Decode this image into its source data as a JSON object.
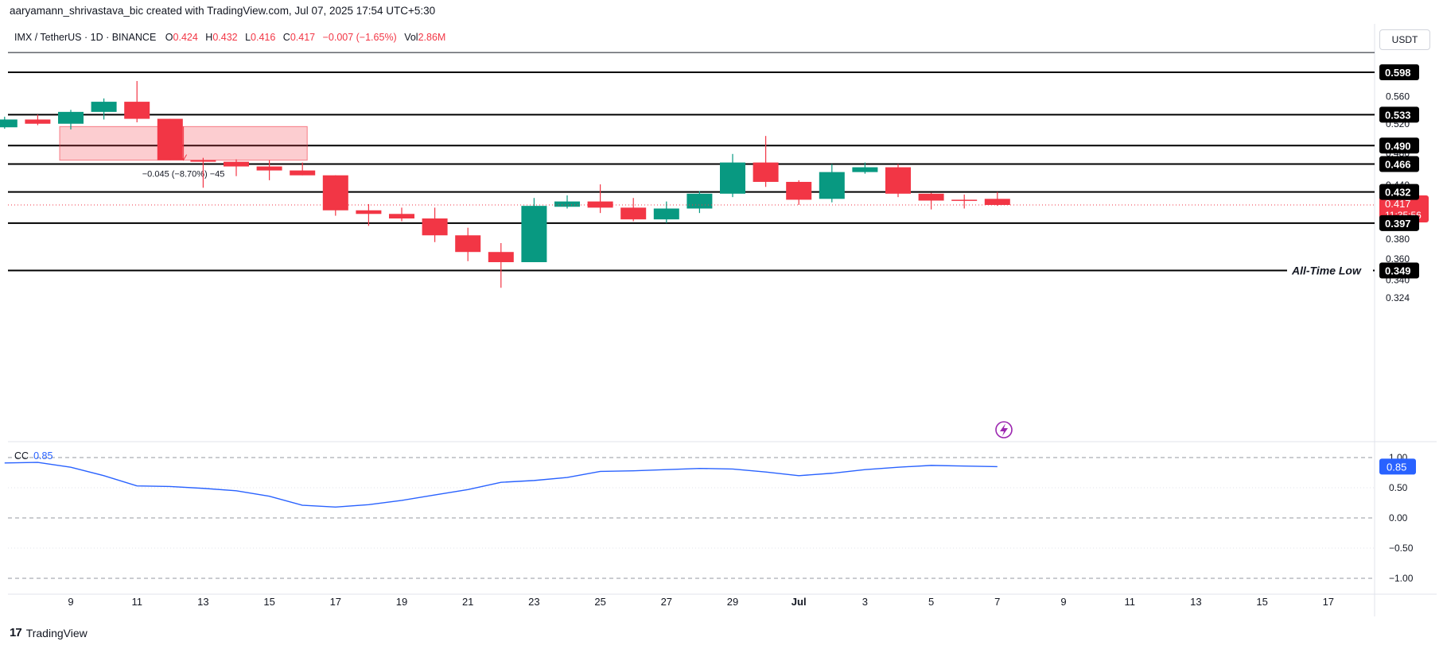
{
  "header": {
    "attribution": "aaryamann_shrivastava_bic created with TradingView.com, Jul 07, 2025 17:54 UTC+5:30"
  },
  "legend": {
    "symbol": "IMX / TetherUS · 1D · BINANCE",
    "open_label": "O",
    "open": "0.424",
    "high_label": "H",
    "high": "0.432",
    "low_label": "L",
    "low": "0.416",
    "close_label": "C",
    "close": "0.417",
    "change": "−0.007 (−1.65%)",
    "vol_label": "Vol",
    "vol": "2.86M"
  },
  "currency_button": "USDT",
  "footer": {
    "brand": "TradingView"
  },
  "colors": {
    "up": "#089981",
    "down": "#f23645",
    "cc_line": "#2962ff",
    "zone_fill": "#f23645"
  },
  "chart_data": [
    {
      "type": "candlestick",
      "title": "IMX / TetherUS · 1D · BINANCE",
      "y_scale": "log",
      "ylim": [
        0.318,
        0.64
      ],
      "y_ticks": [
        0.324,
        0.34,
        0.36,
        0.38,
        0.44,
        0.48,
        0.52,
        0.56
      ],
      "x_ticks": [
        {
          "date": "2025-06-09",
          "label": "9"
        },
        {
          "date": "2025-06-11",
          "label": "11"
        },
        {
          "date": "2025-06-13",
          "label": "13"
        },
        {
          "date": "2025-06-15",
          "label": "15"
        },
        {
          "date": "2025-06-17",
          "label": "17"
        },
        {
          "date": "2025-06-19",
          "label": "19"
        },
        {
          "date": "2025-06-21",
          "label": "21"
        },
        {
          "date": "2025-06-23",
          "label": "23"
        },
        {
          "date": "2025-06-25",
          "label": "25"
        },
        {
          "date": "2025-06-27",
          "label": "27"
        },
        {
          "date": "2025-06-29",
          "label": "29"
        },
        {
          "date": "2025-07-01",
          "label": "Jul"
        },
        {
          "date": "2025-07-03",
          "label": "3"
        },
        {
          "date": "2025-07-05",
          "label": "5"
        },
        {
          "date": "2025-07-07",
          "label": "7"
        },
        {
          "date": "2025-07-09",
          "label": "9"
        },
        {
          "date": "2025-07-11",
          "label": "11"
        },
        {
          "date": "2025-07-13",
          "label": "13"
        },
        {
          "date": "2025-07-15",
          "label": "15"
        },
        {
          "date": "2025-07-17",
          "label": "17"
        }
      ],
      "candles": [
        {
          "date": "2025-06-07",
          "o": 0.515,
          "h": 0.53,
          "l": 0.513,
          "c": 0.526
        },
        {
          "date": "2025-06-08",
          "o": 0.526,
          "h": 0.533,
          "l": 0.518,
          "c": 0.52
        },
        {
          "date": "2025-06-09",
          "o": 0.52,
          "h": 0.54,
          "l": 0.512,
          "c": 0.537
        },
        {
          "date": "2025-06-10",
          "o": 0.537,
          "h": 0.557,
          "l": 0.526,
          "c": 0.552
        },
        {
          "date": "2025-06-11",
          "o": 0.552,
          "h": 0.584,
          "l": 0.522,
          "c": 0.527
        },
        {
          "date": "2025-06-12",
          "o": 0.527,
          "h": 0.527,
          "l": 0.471,
          "c": 0.471
        },
        {
          "date": "2025-06-13",
          "o": 0.471,
          "h": 0.474,
          "l": 0.437,
          "c": 0.469
        },
        {
          "date": "2025-06-14",
          "o": 0.469,
          "h": 0.472,
          "l": 0.451,
          "c": 0.463
        },
        {
          "date": "2025-06-15",
          "o": 0.463,
          "h": 0.471,
          "l": 0.446,
          "c": 0.458
        },
        {
          "date": "2025-06-16",
          "o": 0.458,
          "h": 0.468,
          "l": 0.452,
          "c": 0.452
        },
        {
          "date": "2025-06-17",
          "o": 0.452,
          "h": 0.452,
          "l": 0.405,
          "c": 0.411
        },
        {
          "date": "2025-06-18",
          "o": 0.411,
          "h": 0.418,
          "l": 0.394,
          "c": 0.407
        },
        {
          "date": "2025-06-19",
          "o": 0.407,
          "h": 0.414,
          "l": 0.399,
          "c": 0.402
        },
        {
          "date": "2025-06-20",
          "o": 0.402,
          "h": 0.414,
          "l": 0.377,
          "c": 0.384
        },
        {
          "date": "2025-06-21",
          "o": 0.384,
          "h": 0.392,
          "l": 0.358,
          "c": 0.367
        },
        {
          "date": "2025-06-22",
          "o": 0.367,
          "h": 0.376,
          "l": 0.333,
          "c": 0.357
        },
        {
          "date": "2025-06-23",
          "o": 0.357,
          "h": 0.425,
          "l": 0.357,
          "c": 0.416
        },
        {
          "date": "2025-06-24",
          "o": 0.415,
          "h": 0.428,
          "l": 0.413,
          "c": 0.421
        },
        {
          "date": "2025-06-25",
          "o": 0.421,
          "h": 0.441,
          "l": 0.408,
          "c": 0.414
        },
        {
          "date": "2025-06-26",
          "o": 0.414,
          "h": 0.425,
          "l": 0.399,
          "c": 0.401
        },
        {
          "date": "2025-06-27",
          "o": 0.401,
          "h": 0.421,
          "l": 0.397,
          "c": 0.413
        },
        {
          "date": "2025-06-28",
          "o": 0.413,
          "h": 0.433,
          "l": 0.408,
          "c": 0.43
        },
        {
          "date": "2025-06-29",
          "o": 0.43,
          "h": 0.479,
          "l": 0.426,
          "c": 0.468
        },
        {
          "date": "2025-06-30",
          "o": 0.468,
          "h": 0.503,
          "l": 0.438,
          "c": 0.444
        },
        {
          "date": "2025-07-01",
          "o": 0.444,
          "h": 0.446,
          "l": 0.417,
          "c": 0.423
        },
        {
          "date": "2025-07-02",
          "o": 0.424,
          "h": 0.466,
          "l": 0.42,
          "c": 0.456
        },
        {
          "date": "2025-07-03",
          "o": 0.456,
          "h": 0.468,
          "l": 0.454,
          "c": 0.462
        },
        {
          "date": "2025-07-04",
          "o": 0.462,
          "h": 0.466,
          "l": 0.426,
          "c": 0.43
        },
        {
          "date": "2025-07-05",
          "o": 0.43,
          "h": 0.431,
          "l": 0.412,
          "c": 0.422
        },
        {
          "date": "2025-07-06",
          "o": 0.423,
          "h": 0.429,
          "l": 0.413,
          "c": 0.422
        },
        {
          "date": "2025-07-07",
          "o": 0.424,
          "h": 0.432,
          "l": 0.416,
          "c": 0.417
        }
      ],
      "levels": [
        {
          "value": 0.598,
          "label": "0.598"
        },
        {
          "value": 0.533,
          "label": "0.533"
        },
        {
          "value": 0.49,
          "label": "0.490"
        },
        {
          "value": 0.466,
          "label": "0.466"
        },
        {
          "value": 0.432,
          "label": "0.432"
        },
        {
          "value": 0.397,
          "label": "0.397"
        },
        {
          "value": 0.349,
          "label": "0.349",
          "annotation": "All-Time Low"
        }
      ],
      "top_line_value": 0.631,
      "last_price": {
        "value": 0.417,
        "label": "0.417",
        "countdown": "11:35:56"
      },
      "measure": {
        "from_date": "2025-06-09",
        "to_date": "2025-06-16",
        "top": 0.516,
        "bottom": 0.471,
        "label": "−0.045 (−8.70%) −45"
      }
    },
    {
      "type": "line",
      "indicator": "CC",
      "value_label": "0.85",
      "ylim": [
        -1.2,
        1.1
      ],
      "y_ticks": [
        1.0,
        0.5,
        0.0,
        -0.5,
        -1.0
      ],
      "y_tick_labels": [
        "1.00",
        "0.50",
        "0.00",
        "−0.50",
        "−1.00"
      ],
      "dashed_levels": [
        1.0,
        0.0,
        -1.0
      ],
      "dotted_levels": [
        0.5,
        -0.5
      ],
      "series": [
        {
          "dates": [
            "2025-06-07",
            "2025-06-08",
            "2025-06-09",
            "2025-06-10",
            "2025-06-11",
            "2025-06-12",
            "2025-06-13",
            "2025-06-14",
            "2025-06-15",
            "2025-06-16",
            "2025-06-17",
            "2025-06-18",
            "2025-06-19",
            "2025-06-20",
            "2025-06-21",
            "2025-06-22",
            "2025-06-23",
            "2025-06-24",
            "2025-06-25",
            "2025-06-26",
            "2025-06-27",
            "2025-06-28",
            "2025-06-29",
            "2025-06-30",
            "2025-07-01",
            "2025-07-02",
            "2025-07-03",
            "2025-07-04",
            "2025-07-05",
            "2025-07-06",
            "2025-07-07"
          ],
          "values": [
            0.91,
            0.92,
            0.84,
            0.7,
            0.53,
            0.52,
            0.49,
            0.45,
            0.36,
            0.21,
            0.18,
            0.22,
            0.29,
            0.38,
            0.47,
            0.59,
            0.62,
            0.67,
            0.77,
            0.78,
            0.8,
            0.82,
            0.81,
            0.76,
            0.7,
            0.74,
            0.8,
            0.84,
            0.87,
            0.86,
            0.85
          ]
        }
      ]
    }
  ]
}
